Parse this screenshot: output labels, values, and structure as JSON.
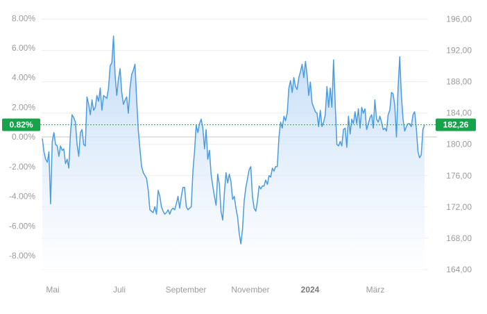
{
  "chart_data": {
    "type": "area",
    "x_tick_labels": [
      "Mai",
      "Juli",
      "September",
      "November",
      "2024",
      "März"
    ],
    "left_axis": {
      "unit": "percent",
      "ticks": [
        "8.00%",
        "6.00%",
        "4.00%",
        "2.00%",
        "0.00%",
        "-2.00%",
        "-4.00%",
        "-6.00%",
        "-8.00%"
      ],
      "ylim": [
        -9.4,
        8.2
      ]
    },
    "right_axis": {
      "ticks": [
        "196,00",
        "192,00",
        "188,00",
        "184,00",
        "180,00",
        "176,00",
        "172,00",
        "168,00",
        "164,00"
      ],
      "ylim": [
        163.1,
        196.5
      ]
    },
    "current": {
      "percent_label": "0.82%",
      "price_label": "182,26",
      "percent": 0.82
    },
    "grid": true,
    "colors": {
      "line": "#4a9be0",
      "fill_top": "#b8d6f7",
      "fill_bottom": "#ffffff",
      "badge": "#16a34a",
      "grid": "#ebebeb",
      "zero_line": "#c8c8c8",
      "ref_line": "#2e9e4f"
    },
    "series": [
      {
        "values": [
          -0.1,
          -1.0,
          -1.5,
          -1.7,
          -1.0,
          -4.5,
          -0.3,
          0.3,
          -0.5,
          -0.6,
          -1.3,
          -0.6,
          -0.9,
          -0.8,
          -1.8,
          -1.5,
          -2.1,
          0.2,
          1.5,
          1.3,
          1.0,
          -0.5,
          -1.3,
          0.3,
          0.5,
          -0.5,
          -0.6,
          2.7,
          2.2,
          1.5,
          2.5,
          1.8,
          2.0,
          2.8,
          2.4,
          3.3,
          1.8,
          2.8,
          2.7,
          2.6,
          3.3,
          4.8,
          5.0,
          6.8,
          4.1,
          2.8,
          3.9,
          4.6,
          3.0,
          2.2,
          2.5,
          2.7,
          1.6,
          3.3,
          4.2,
          4.5,
          4.9,
          2.5,
          0.5,
          -0.8,
          -2.0,
          -2.4,
          -2.6,
          -2.8,
          -3.6,
          -4.9,
          -5.0,
          -5.1,
          -4.7,
          -5.2,
          -3.6,
          -4.0,
          -4.7,
          -5.0,
          -5.2,
          -5.1,
          -4.9,
          -5.2,
          -4.9,
          -4.8,
          -4.9,
          -4.5,
          -4.0,
          -4.8,
          -4.0,
          -3.4,
          -3.4,
          -4.7,
          -4.9,
          -4.8,
          -4.7,
          -2.3,
          -1.0,
          0.8,
          0.3,
          0.9,
          1.2,
          0.6,
          -0.8,
          0.5,
          -1.5,
          -0.9,
          -2.5,
          -3.3,
          -4.0,
          -4.6,
          -2.5,
          -3.2,
          -5.0,
          -5.6,
          -3.8,
          -2.4,
          -3.1,
          -2.5,
          -3.0,
          -4.2,
          -4.0,
          -4.8,
          -5.4,
          -6.5,
          -7.2,
          -6.2,
          -4.3,
          -3.4,
          -2.8,
          -2.2,
          -2.0,
          -4.0,
          -4.8,
          -5.0,
          -4.3,
          -3.3,
          -3.5,
          -3.3,
          -3.3,
          -2.9,
          -3.2,
          -2.6,
          -2.7,
          -2.1,
          -2.3,
          -2.0,
          -2.0,
          0.0,
          1.0,
          0.6,
          1.4,
          1.1,
          1.6,
          3.3,
          3.8,
          3.0,
          4.0,
          3.4,
          3.2,
          4.0,
          4.4,
          4.9,
          4.0,
          5.1,
          4.2,
          2.8,
          3.7,
          2.3,
          2.0,
          1.7,
          1.6,
          0.7,
          1.8,
          0.7,
          1.0,
          1.5,
          3.4,
          2.0,
          3.3,
          2.0,
          5.2,
          2.2,
          -0.5,
          -0.6,
          -0.3,
          -0.6,
          0.5,
          0.6,
          -0.7,
          1.4,
          0.2,
          1.2,
          0.9,
          1.7,
          0.9,
          1.9,
          0.6,
          2.0,
          1.6,
          1.9,
          0.5,
          0.9,
          1.3,
          1.5,
          0.6,
          2.5,
          1.2,
          1.0,
          1.4,
          1.0,
          0.5,
          0.6,
          0.4,
          1.5,
          1.8,
          3.0,
          2.9,
          2.1,
          0.0,
          3.3,
          5.4,
          2.8,
          1.2,
          0.4,
          0.7,
          0.9,
          0.9,
          0.7,
          1.5,
          1.7,
          0.6,
          -1.0,
          -1.4,
          -1.2,
          0.5,
          0.82
        ]
      }
    ]
  }
}
